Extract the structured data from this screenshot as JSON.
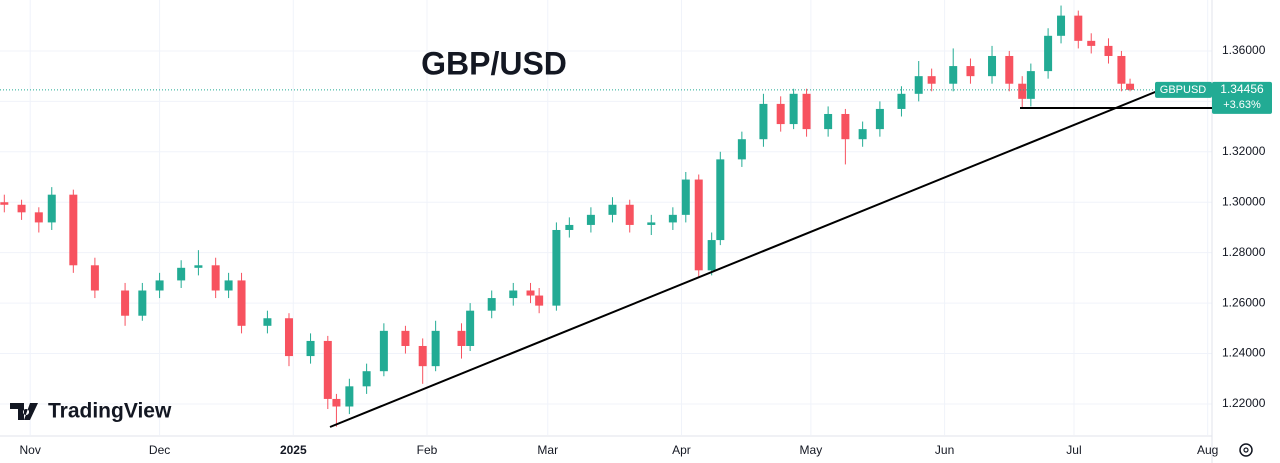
{
  "chart_data": {
    "type": "candlestick",
    "title": "GBP/USD",
    "watermark": "TradingView",
    "last_price": {
      "symbol": "GBPUSD",
      "price": "1.34456",
      "change": "+3.63%"
    },
    "up_color": "#22ab94",
    "down_color": "#f7525f",
    "grid": true,
    "x": [
      -6,
      -2,
      2,
      5,
      10,
      15,
      22,
      26,
      30,
      35,
      39,
      43,
      46,
      49,
      55,
      60,
      65,
      69,
      71,
      74,
      78,
      82,
      87,
      91,
      94,
      100,
      102,
      107,
      112,
      116,
      118,
      122,
      125,
      130,
      135,
      139,
      144,
      149,
      152,
      155,
      158,
      160,
      165,
      170,
      174,
      177,
      180,
      185,
      189,
      193,
      197,
      202,
      206,
      209,
      214,
      218,
      223,
      227,
      230,
      232,
      236,
      239,
      243,
      246,
      250,
      253,
      255
    ],
    "open": [
      1.3,
      1.299,
      1.296,
      1.292,
      1.303,
      1.275,
      1.265,
      1.255,
      1.265,
      1.269,
      1.274,
      1.275,
      1.265,
      1.269,
      1.251,
      1.254,
      1.239,
      1.245,
      1.222,
      1.219,
      1.227,
      1.233,
      1.249,
      1.243,
      1.235,
      1.249,
      1.243,
      1.257,
      1.262,
      1.265,
      1.263,
      1.259,
      1.289,
      1.291,
      1.295,
      1.299,
      1.291,
      1.292,
      1.295,
      1.309,
      1.273,
      1.285,
      1.317,
      1.325,
      1.339,
      1.331,
      1.343,
      1.329,
      1.335,
      1.325,
      1.329,
      1.337,
      1.343,
      1.35,
      1.347,
      1.354,
      1.35,
      1.358,
      1.347,
      1.341,
      1.352,
      1.366,
      1.374,
      1.364,
      1.362,
      1.358,
      1.347
    ],
    "close": [
      1.299,
      1.296,
      1.292,
      1.303,
      1.275,
      1.265,
      1.255,
      1.265,
      1.269,
      1.274,
      1.275,
      1.265,
      1.269,
      1.251,
      1.254,
      1.239,
      1.245,
      1.222,
      1.219,
      1.227,
      1.233,
      1.249,
      1.243,
      1.235,
      1.249,
      1.243,
      1.257,
      1.262,
      1.265,
      1.263,
      1.259,
      1.289,
      1.291,
      1.295,
      1.299,
      1.291,
      1.292,
      1.295,
      1.309,
      1.273,
      1.285,
      1.317,
      1.325,
      1.339,
      1.331,
      1.343,
      1.329,
      1.335,
      1.325,
      1.329,
      1.337,
      1.343,
      1.35,
      1.347,
      1.354,
      1.35,
      1.358,
      1.347,
      1.341,
      1.352,
      1.366,
      1.374,
      1.364,
      1.362,
      1.358,
      1.347,
      1.34456
    ],
    "high": [
      1.303,
      1.301,
      1.298,
      1.306,
      1.305,
      1.278,
      1.268,
      1.268,
      1.272,
      1.277,
      1.281,
      1.278,
      1.272,
      1.272,
      1.257,
      1.256,
      1.248,
      1.247,
      1.224,
      1.23,
      1.236,
      1.252,
      1.251,
      1.246,
      1.253,
      1.252,
      1.26,
      1.265,
      1.268,
      1.268,
      1.266,
      1.292,
      1.294,
      1.298,
      1.302,
      1.301,
      1.295,
      1.298,
      1.312,
      1.311,
      1.288,
      1.32,
      1.328,
      1.343,
      1.342,
      1.345,
      1.345,
      1.338,
      1.337,
      1.332,
      1.34,
      1.346,
      1.356,
      1.353,
      1.361,
      1.357,
      1.362,
      1.36,
      1.35,
      1.355,
      1.369,
      1.378,
      1.376,
      1.367,
      1.365,
      1.36,
      1.349
    ],
    "low": [
      1.296,
      1.293,
      1.288,
      1.289,
      1.272,
      1.262,
      1.251,
      1.253,
      1.262,
      1.266,
      1.271,
      1.262,
      1.262,
      1.248,
      1.248,
      1.235,
      1.236,
      1.218,
      1.211,
      1.216,
      1.224,
      1.231,
      1.24,
      1.228,
      1.233,
      1.238,
      1.241,
      1.254,
      1.259,
      1.26,
      1.256,
      1.257,
      1.286,
      1.288,
      1.292,
      1.288,
      1.287,
      1.289,
      1.292,
      1.27,
      1.271,
      1.283,
      1.314,
      1.322,
      1.328,
      1.329,
      1.326,
      1.326,
      1.315,
      1.322,
      1.326,
      1.334,
      1.34,
      1.344,
      1.344,
      1.347,
      1.347,
      1.344,
      1.337,
      1.338,
      1.349,
      1.363,
      1.361,
      1.359,
      1.355,
      1.344,
      1.344
    ],
    "xlim": [
      -7,
      274
    ],
    "ylim": [
      1.2077,
      1.3802
    ],
    "xticks": [
      {
        "value": 0,
        "label": "Nov"
      },
      {
        "value": 30,
        "label": "Dec"
      },
      {
        "value": 61,
        "label": "2025"
      },
      {
        "value": 92,
        "label": "Feb"
      },
      {
        "value": 120,
        "label": "Mar"
      },
      {
        "value": 151,
        "label": "Apr"
      },
      {
        "value": 181,
        "label": "May"
      },
      {
        "value": 212,
        "label": "Jun"
      },
      {
        "value": 242,
        "label": "Jul"
      },
      {
        "value": 273,
        "label": "Aug"
      }
    ],
    "yticks": [
      {
        "value": 1.22,
        "label": "1.22000"
      },
      {
        "value": 1.24,
        "label": "1.24000"
      },
      {
        "value": 1.26,
        "label": "1.26000"
      },
      {
        "value": 1.28,
        "label": "1.28000"
      },
      {
        "value": 1.3,
        "label": "1.30000"
      },
      {
        "value": 1.32,
        "label": "1.32000"
      },
      {
        "value": 1.34,
        "label": "1.34000"
      },
      {
        "value": 1.36,
        "label": "1.36000"
      }
    ]
  }
}
